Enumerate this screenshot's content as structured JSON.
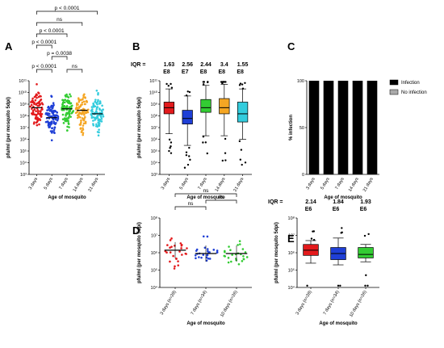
{
  "panels": [
    {
      "id": "A",
      "letter": "A"
    },
    {
      "id": "B",
      "letter": "B"
    },
    {
      "id": "C",
      "letter": "C"
    },
    {
      "id": "D",
      "letter": "D"
    },
    {
      "id": "E",
      "letter": "E"
    }
  ],
  "chart_data": [
    {
      "panel": "A",
      "type": "scatter",
      "ylabel": "pfu/ml (per mosquito 5dpi)",
      "xlabel": "Age of mosquito",
      "yscale": "log",
      "ylim": [
        1000,
        100000000000
      ],
      "yticks": [
        "10³",
        "10⁴",
        "10⁵",
        "10⁶",
        "10⁷",
        "10⁸",
        "10⁹",
        "10¹⁰",
        "10¹¹"
      ],
      "categories": [
        "3 days",
        "5 days",
        "7 days",
        "14 days",
        "21 days"
      ],
      "colors": [
        "#e31a1c",
        "#1f3fd6",
        "#33cc33",
        "#f5a623",
        "#33ccdd"
      ],
      "medians": [
        500000000,
        70000000,
        400000000,
        300000000,
        150000000
      ],
      "comparisons": [
        {
          "from": 0,
          "to": 4,
          "label": "p < 0.0001"
        },
        {
          "from": 0,
          "to": 3,
          "label": "ns"
        },
        {
          "from": 0,
          "to": 2,
          "label": "p < 0.0001"
        },
        {
          "from": 0,
          "to": 1,
          "label": "p < 0.0001"
        },
        {
          "from": 1,
          "to": 2,
          "label": "p = 0.0038"
        },
        {
          "from": 0,
          "to": 1,
          "label": "p < 0.0001"
        },
        {
          "from": 2,
          "to": 3,
          "label": "ns"
        }
      ]
    },
    {
      "panel": "B",
      "type": "box",
      "ylabel": "pfu/ml (per mosquito 5dpi)",
      "xlabel": "Age of mosquito",
      "yscale": "log",
      "ylim": [
        1000,
        100000000000
      ],
      "yticks": [
        "10³",
        "10⁴",
        "10⁵",
        "10⁶",
        "10⁷",
        "10⁸",
        "10⁹",
        "10¹⁰",
        "10¹¹"
      ],
      "categories": [
        "3 days",
        "5 days",
        "7 days",
        "14 days",
        "21 days"
      ],
      "colors": [
        "#e31a1c",
        "#1f3fd6",
        "#33cc33",
        "#f5a623",
        "#33ccdd"
      ],
      "iqr_label": "IQR =",
      "iqr_values": [
        "1.63",
        "2.56",
        "2.44",
        "3.4",
        "1.55"
      ],
      "iqr_units": [
        "E8",
        "E7",
        "E8",
        "E8",
        "E8"
      ],
      "boxes": [
        {
          "q1": 150000000,
          "median": 500000000,
          "q3": 1500000000,
          "wlo": 3000000,
          "whi": 20000000000
        },
        {
          "q1": 20000000,
          "median": 60000000,
          "q3": 300000000,
          "wlo": 300000,
          "whi": 5000000000
        },
        {
          "q1": 200000000,
          "median": 500000000,
          "q3": 2500000000,
          "wlo": 2000000,
          "whi": 40000000000
        },
        {
          "q1": 150000000,
          "median": 500000000,
          "q3": 3000000000,
          "wlo": 2000000,
          "whi": 50000000000
        },
        {
          "q1": 30000000,
          "median": 150000000,
          "q3": 1500000000,
          "wlo": 1000000,
          "whi": 20000000000
        }
      ]
    },
    {
      "panel": "C",
      "type": "bar",
      "ylabel": "% infection",
      "xlabel": "Age of mosquito",
      "ylim": [
        0,
        100
      ],
      "yticks": [
        "0",
        "50",
        "100"
      ],
      "categories": [
        "3 days",
        "5 days",
        "7 days",
        "14 days",
        "21 days"
      ],
      "series": [
        {
          "name": "Infection",
          "values": [
            100,
            100,
            100,
            100,
            100
          ],
          "color": "#000000"
        },
        {
          "name": "No infection",
          "values": [
            0,
            0,
            0,
            0,
            0
          ],
          "color": "#aaaaaa"
        }
      ],
      "legend": "right"
    },
    {
      "panel": "D",
      "type": "scatter",
      "ylabel": "pfu/ml (per mosquito 5dpi)",
      "xlabel": "Age of mosquito",
      "yscale": "log",
      "ylim": [
        10000,
        100000000
      ],
      "yticks": [
        "10⁴",
        "10⁵",
        "10⁶",
        "10⁷",
        "10⁸"
      ],
      "categories": [
        "3 days (n=28)",
        "7 days (n=34)",
        "10 days (n=26)"
      ],
      "colors": [
        "#e31a1c",
        "#1f3fd6",
        "#33cc33"
      ],
      "medians": [
        1400000,
        900000,
        900000
      ],
      "comparisons": [
        {
          "from": 0,
          "to": 2,
          "label": "ns"
        },
        {
          "from": 0,
          "to": 1,
          "label": "ns"
        },
        {
          "from": 1,
          "to": 2,
          "label": "ns"
        }
      ]
    },
    {
      "panel": "E",
      "type": "box",
      "ylabel": "pfu/ml (per mosquito 5dpi)",
      "xlabel": "Age of mosquito",
      "yscale": "log",
      "ylim": [
        10000,
        100000000
      ],
      "yticks": [
        "10⁴",
        "10⁵",
        "10⁶",
        "10⁷",
        "10⁸"
      ],
      "categories": [
        "3 days (n=28)",
        "7 days (n=34)",
        "10 days (n=26)"
      ],
      "colors": [
        "#e31a1c",
        "#1f3fd6",
        "#33cc33"
      ],
      "iqr_label": "IQR =",
      "iqr_values": [
        "2.14",
        "1.84",
        "1.93"
      ],
      "iqr_units": [
        "E6",
        "E6",
        "E6"
      ],
      "boxes": [
        {
          "q1": 700000,
          "median": 1400000,
          "q3": 3000000,
          "wlo": 250000,
          "whi": 5000000
        },
        {
          "q1": 400000,
          "median": 900000,
          "q3": 2000000,
          "wlo": 200000,
          "whi": 7000000
        },
        {
          "q1": 500000,
          "median": 800000,
          "q3": 2000000,
          "wlo": 300000,
          "whi": 3000000
        }
      ]
    }
  ]
}
